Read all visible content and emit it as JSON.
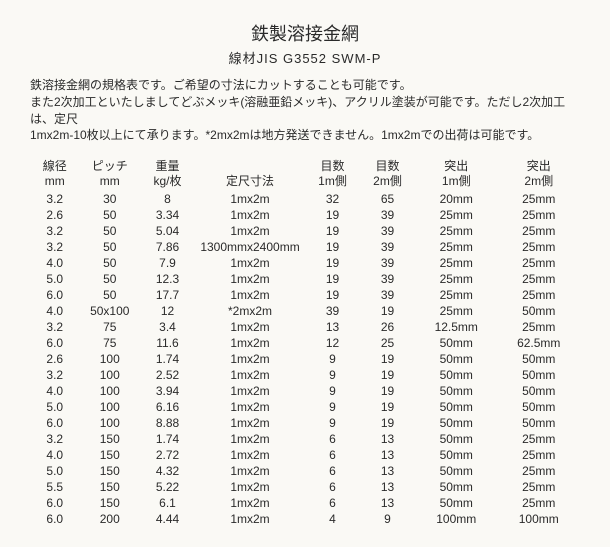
{
  "title": "鉄製溶接金網",
  "subtitle": "線材JIS G3552 SWM-P",
  "description_line1": "鉄溶接金網の規格表です。ご希望の寸法にカットすることも可能です。",
  "description_line2": "また2次加工といたしましてどぶメッキ(溶融亜鉛メッキ)、アクリル塗装が可能です。ただし2次加工は、定尺",
  "description_line3": "1mx2m-10枚以上にて承ります。*2mx2mは地方発送できません。1mx2mでの出荷は可能です。",
  "headers": {
    "wire": "線径\nmm",
    "pitch": "ピッチ\nmm",
    "weight": "重量\nkg/枚",
    "size": "定尺寸法",
    "mesh1m": "目数\n1m側",
    "mesh2m": "目数\n2m側",
    "pro1m": "突出\n1m側",
    "pro2m": "突出\n2m側"
  },
  "rows": [
    {
      "wire": "3.2",
      "pitch": "30",
      "weight": "8",
      "size": "1mx2m",
      "mesh1m": "32",
      "mesh2m": "65",
      "pro1m": "20mm",
      "pro2m": "25mm"
    },
    {
      "wire": "2.6",
      "pitch": "50",
      "weight": "3.34",
      "size": "1mx2m",
      "mesh1m": "19",
      "mesh2m": "39",
      "pro1m": "25mm",
      "pro2m": "25mm"
    },
    {
      "wire": "3.2",
      "pitch": "50",
      "weight": "5.04",
      "size": "1mx2m",
      "mesh1m": "19",
      "mesh2m": "39",
      "pro1m": "25mm",
      "pro2m": "25mm"
    },
    {
      "wire": "3.2",
      "pitch": "50",
      "weight": "7.86",
      "size": "1300mmx2400mm",
      "mesh1m": "19",
      "mesh2m": "39",
      "pro1m": "25mm",
      "pro2m": "25mm"
    },
    {
      "wire": "4.0",
      "pitch": "50",
      "weight": "7.9",
      "size": "1mx2m",
      "mesh1m": "19",
      "mesh2m": "39",
      "pro1m": "25mm",
      "pro2m": "25mm"
    },
    {
      "wire": "5.0",
      "pitch": "50",
      "weight": "12.3",
      "size": "1mx2m",
      "mesh1m": "19",
      "mesh2m": "39",
      "pro1m": "25mm",
      "pro2m": "25mm"
    },
    {
      "wire": "6.0",
      "pitch": "50",
      "weight": "17.7",
      "size": "1mx2m",
      "mesh1m": "19",
      "mesh2m": "39",
      "pro1m": "25mm",
      "pro2m": "25mm"
    },
    {
      "wire": "4.0",
      "pitch": "50x100",
      "weight": "12",
      "size": "*2mx2m",
      "mesh1m": "39",
      "mesh2m": "19",
      "pro1m": "25mm",
      "pro2m": "50mm"
    },
    {
      "wire": "3.2",
      "pitch": "75",
      "weight": "3.4",
      "size": "1mx2m",
      "mesh1m": "13",
      "mesh2m": "26",
      "pro1m": "12.5mm",
      "pro2m": "25mm"
    },
    {
      "wire": "6.0",
      "pitch": "75",
      "weight": "11.6",
      "size": "1mx2m",
      "mesh1m": "12",
      "mesh2m": "25",
      "pro1m": "50mm",
      "pro2m": "62.5mm"
    },
    {
      "wire": "2.6",
      "pitch": "100",
      "weight": "1.74",
      "size": "1mx2m",
      "mesh1m": "9",
      "mesh2m": "19",
      "pro1m": "50mm",
      "pro2m": "50mm"
    },
    {
      "wire": "3.2",
      "pitch": "100",
      "weight": "2.52",
      "size": "1mx2m",
      "mesh1m": "9",
      "mesh2m": "19",
      "pro1m": "50mm",
      "pro2m": "50mm"
    },
    {
      "wire": "4.0",
      "pitch": "100",
      "weight": "3.94",
      "size": "1mx2m",
      "mesh1m": "9",
      "mesh2m": "19",
      "pro1m": "50mm",
      "pro2m": "50mm"
    },
    {
      "wire": "5.0",
      "pitch": "100",
      "weight": "6.16",
      "size": "1mx2m",
      "mesh1m": "9",
      "mesh2m": "19",
      "pro1m": "50mm",
      "pro2m": "50mm"
    },
    {
      "wire": "6.0",
      "pitch": "100",
      "weight": "8.88",
      "size": "1mx2m",
      "mesh1m": "9",
      "mesh2m": "19",
      "pro1m": "50mm",
      "pro2m": "50mm"
    },
    {
      "wire": "3.2",
      "pitch": "150",
      "weight": "1.74",
      "size": "1mx2m",
      "mesh1m": "6",
      "mesh2m": "13",
      "pro1m": "50mm",
      "pro2m": "25mm"
    },
    {
      "wire": "4.0",
      "pitch": "150",
      "weight": "2.72",
      "size": "1mx2m",
      "mesh1m": "6",
      "mesh2m": "13",
      "pro1m": "50mm",
      "pro2m": "25mm"
    },
    {
      "wire": "5.0",
      "pitch": "150",
      "weight": "4.32",
      "size": "1mx2m",
      "mesh1m": "6",
      "mesh2m": "13",
      "pro1m": "50mm",
      "pro2m": "25mm"
    },
    {
      "wire": "5.5",
      "pitch": "150",
      "weight": "5.22",
      "size": "1mx2m",
      "mesh1m": "6",
      "mesh2m": "13",
      "pro1m": "50mm",
      "pro2m": "25mm"
    },
    {
      "wire": "6.0",
      "pitch": "150",
      "weight": "6.1",
      "size": "1mx2m",
      "mesh1m": "6",
      "mesh2m": "13",
      "pro1m": "50mm",
      "pro2m": "25mm"
    },
    {
      "wire": "6.0",
      "pitch": "200",
      "weight": "4.44",
      "size": "1mx2m",
      "mesh1m": "4",
      "mesh2m": "9",
      "pro1m": "100mm",
      "pro2m": "100mm"
    }
  ]
}
